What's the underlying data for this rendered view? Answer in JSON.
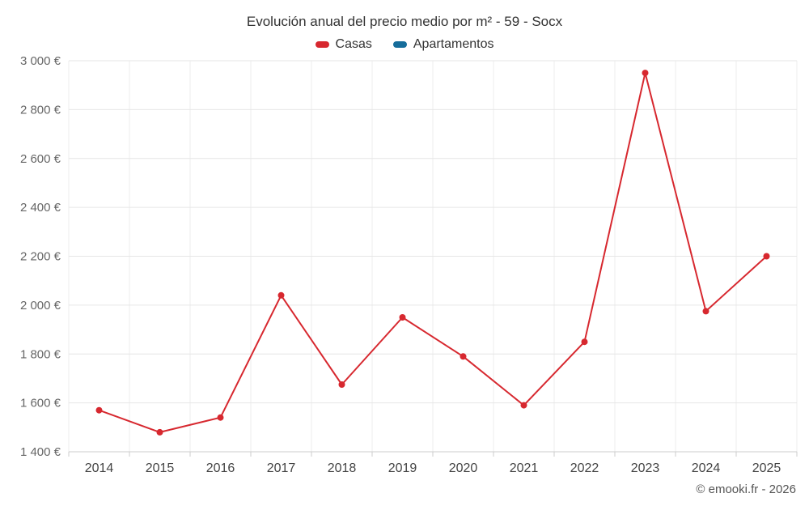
{
  "chart": {
    "title": "Evolución anual del precio medio por m² - 59 - Socx",
    "footer": "© emooki.fr - 2026"
  },
  "legend": {
    "items": [
      {
        "label": "Casas",
        "color": "#d7282f"
      },
      {
        "label": "Apartamentos",
        "color": "#166d9b"
      }
    ]
  },
  "chart_data": {
    "type": "line",
    "title": "Evolución anual del precio medio por m² - 59 - Socx",
    "categories": [
      "2014",
      "2015",
      "2016",
      "2017",
      "2018",
      "2019",
      "2020",
      "2021",
      "2022",
      "2023",
      "2024",
      "2025"
    ],
    "series": [
      {
        "name": "Casas",
        "color": "#d7282f",
        "values": [
          1570,
          1480,
          1540,
          2040,
          1675,
          1950,
          1790,
          1590,
          1850,
          2950,
          1975,
          2200
        ]
      },
      {
        "name": "Apartamentos",
        "color": "#166d9b",
        "values": []
      }
    ],
    "xlabel": "",
    "ylabel": "",
    "ylim": [
      1400,
      3000
    ],
    "ytick_step": 200,
    "y_suffix": "€",
    "grid": true,
    "legend_position": "top"
  }
}
